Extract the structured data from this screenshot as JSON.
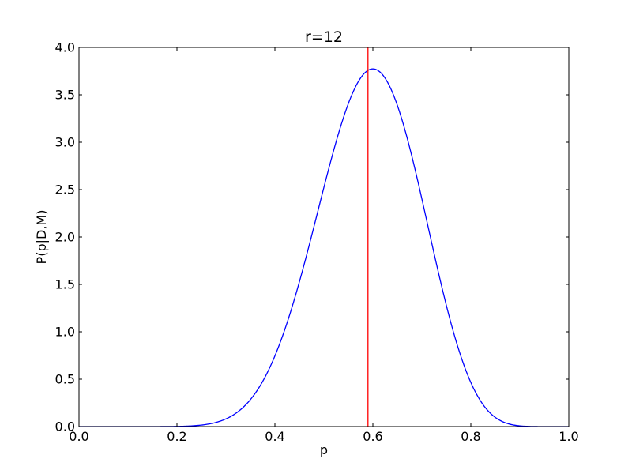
{
  "chart_data": {
    "type": "line",
    "title": "r=12",
    "xlabel": "p",
    "ylabel": "P(p|D,M)",
    "xlim": [
      0.0,
      1.0
    ],
    "ylim": [
      0.0,
      4.0
    ],
    "x_ticks": [
      "0.0",
      "0.2",
      "0.4",
      "0.6",
      "0.8",
      "1.0"
    ],
    "y_ticks": [
      "0.0",
      "0.5",
      "1.0",
      "1.5",
      "2.0",
      "2.5",
      "3.0",
      "3.5",
      "4.0"
    ],
    "grid": false,
    "series": [
      {
        "color": "#0000ff",
        "distribution": "beta",
        "alpha": 13,
        "beta": 9,
        "x": [
          0.0,
          0.1,
          0.2,
          0.25,
          0.3,
          0.35,
          0.4,
          0.45,
          0.5,
          0.55,
          0.6,
          0.65,
          0.7,
          0.75,
          0.8,
          0.85,
          0.9,
          0.95,
          1.0
        ],
        "y": [
          0.0,
          0.0,
          0.003,
          0.026,
          0.109,
          0.35,
          0.85,
          1.63,
          2.58,
          3.41,
          3.78,
          3.49,
          2.65,
          1.64,
          0.78,
          0.27,
          0.06,
          0.005,
          0.0
        ]
      }
    ],
    "vlines": [
      {
        "x": 0.59,
        "color": "#ff0000"
      }
    ]
  }
}
